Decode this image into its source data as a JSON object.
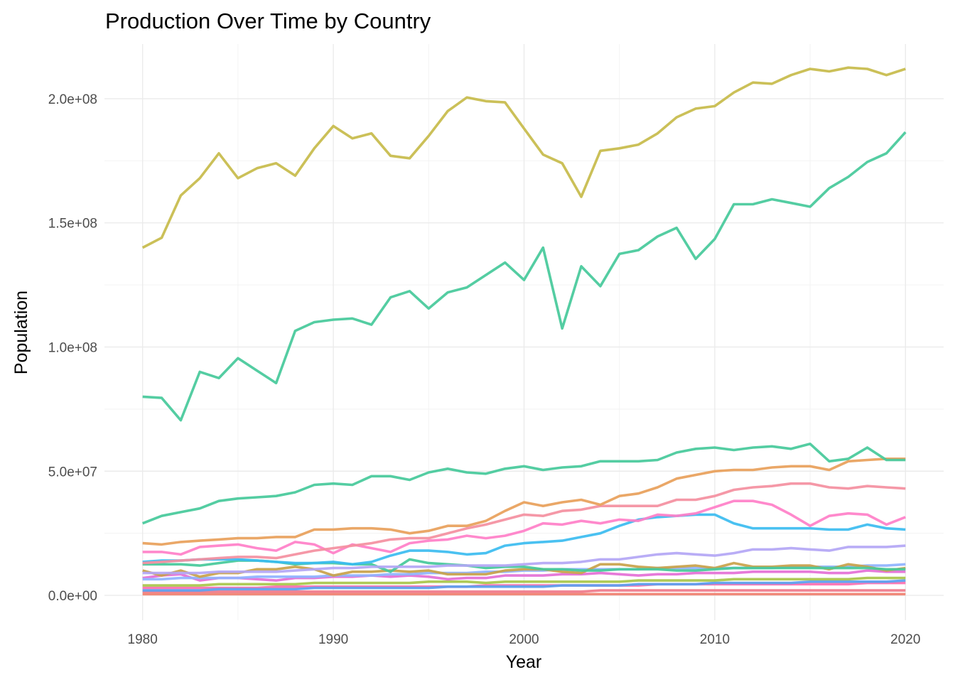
{
  "chart_data": {
    "type": "line",
    "title": "Production Over Time by Country",
    "xlabel": "Year",
    "ylabel": "Population",
    "xlim": [
      1978,
      2022
    ],
    "ylim": [
      -10000000,
      222000000
    ],
    "x_ticks": [
      1980,
      1990,
      2000,
      2010,
      2020
    ],
    "x_tick_labels": [
      "1980",
      "1990",
      "2000",
      "2010",
      "2020"
    ],
    "x_minor_ticks": [
      1985,
      1995,
      2005,
      2015
    ],
    "y_ticks": [
      0,
      50000000,
      100000000,
      150000000,
      200000000
    ],
    "y_tick_labels": [
      "0.0e+00",
      "5.0e+07",
      "1.0e+08",
      "1.5e+08",
      "2.0e+08"
    ],
    "y_minor_ticks": [
      25000000,
      75000000,
      125000000,
      175000000
    ],
    "grid": true,
    "legend": "none",
    "x": [
      1980,
      1981,
      1982,
      1983,
      1984,
      1985,
      1986,
      1987,
      1988,
      1989,
      1990,
      1991,
      1992,
      1993,
      1994,
      1995,
      1996,
      1997,
      1998,
      1999,
      2000,
      2001,
      2002,
      2003,
      2004,
      2005,
      2006,
      2007,
      2008,
      2009,
      2010,
      2011,
      2012,
      2013,
      2014,
      2015,
      2016,
      2017,
      2018,
      2019,
      2020
    ],
    "series": [
      {
        "color": "#c7bb4a",
        "values": [
          140000000,
          144000000,
          161000000,
          168000000,
          178000000,
          168000000,
          172000000,
          174000000,
          169000000,
          180000000,
          189000000,
          184000000,
          186000000,
          177000000,
          176000000,
          185000000,
          195000000,
          200500000,
          199000000,
          198500000,
          188000000,
          177500000,
          174000000,
          160500000,
          179000000,
          180000000,
          181500000,
          186000000,
          192500000,
          196000000,
          197000000,
          202500000,
          206500000,
          206000000,
          209500000,
          212000000,
          211000000,
          212500000,
          212000000,
          209500000,
          212000000
        ]
      },
      {
        "color": "#45c99a",
        "values": [
          80000000,
          79500000,
          70500000,
          90000000,
          87500000,
          95500000,
          90500000,
          85500000,
          106500000,
          110000000,
          111000000,
          111500000,
          109000000,
          120000000,
          122500000,
          115500000,
          122000000,
          124000000,
          129000000,
          134000000,
          127000000,
          140000000,
          107500000,
          132500000,
          124500000,
          137500000,
          139000000,
          144500000,
          148000000,
          135500000,
          143500000,
          157500000,
          157500000,
          159500000,
          158000000,
          156500000,
          164000000,
          168500000,
          174500000,
          178000000,
          186500000
        ]
      },
      {
        "color": "#45c99a",
        "values": [
          29000000,
          32000000,
          33500000,
          35000000,
          38000000,
          39000000,
          39500000,
          40000000,
          41500000,
          44500000,
          45000000,
          44500000,
          48000000,
          48000000,
          46500000,
          49500000,
          51000000,
          49500000,
          49000000,
          51000000,
          52000000,
          50500000,
          51500000,
          52000000,
          54000000,
          54000000,
          54000000,
          54500000,
          57500000,
          59000000,
          59500000,
          58500000,
          59500000,
          60000000,
          59000000,
          61000000,
          54000000,
          55000000,
          59500000,
          54500000,
          54500000
        ]
      },
      {
        "color": "#e8a05a",
        "values": [
          21000000,
          20500000,
          21500000,
          22000000,
          22500000,
          23000000,
          23000000,
          23500000,
          23500000,
          26500000,
          26500000,
          27000000,
          27000000,
          26500000,
          25000000,
          26000000,
          28000000,
          28000000,
          30000000,
          34000000,
          37500000,
          36000000,
          37500000,
          38500000,
          36500000,
          40000000,
          41000000,
          43500000,
          47000000,
          48500000,
          50000000,
          50500000,
          50500000,
          51500000,
          52000000,
          52000000,
          50500000,
          54000000,
          54500000,
          55000000,
          55000000
        ]
      },
      {
        "color": "#f48fa0",
        "values": [
          13000000,
          13500000,
          14000000,
          14500000,
          15000000,
          15500000,
          15500000,
          15000000,
          16500000,
          18000000,
          19000000,
          20000000,
          21000000,
          22500000,
          23000000,
          23000000,
          25000000,
          27000000,
          28500000,
          30500000,
          32500000,
          32000000,
          34000000,
          34500000,
          36000000,
          36000000,
          36000000,
          36000000,
          38500000,
          38500000,
          40000000,
          42500000,
          43500000,
          44000000,
          45000000,
          45000000,
          43500000,
          43000000,
          44000000,
          43500000,
          43000000
        ]
      },
      {
        "color": "#ff7fc8",
        "values": [
          17500000,
          17500000,
          16500000,
          19500000,
          20000000,
          20500000,
          19000000,
          18000000,
          21500000,
          20500000,
          17000000,
          20500000,
          19000000,
          17500000,
          21000000,
          22000000,
          22500000,
          24000000,
          23000000,
          24000000,
          26000000,
          29000000,
          28500000,
          30000000,
          29000000,
          30500000,
          30000000,
          32500000,
          32000000,
          33000000,
          35500000,
          38000000,
          38000000,
          36500000,
          32500000,
          28000000,
          32000000,
          33000000,
          32500000,
          28500000,
          31500000
        ]
      },
      {
        "color": "#3bbcf0",
        "values": [
          13500000,
          14000000,
          14000000,
          14500000,
          14500000,
          14500000,
          14000000,
          13500000,
          13000000,
          13000000,
          13500000,
          12500000,
          13500000,
          16000000,
          18000000,
          18000000,
          17500000,
          16500000,
          17000000,
          20000000,
          21000000,
          21500000,
          22000000,
          23500000,
          25000000,
          28000000,
          30500000,
          31500000,
          32000000,
          32500000,
          32500000,
          29000000,
          27000000,
          27000000,
          27000000,
          27000000,
          26500000,
          26500000,
          28500000,
          27000000,
          26500000
        ]
      },
      {
        "color": "#b3a6f5",
        "values": [
          9000000,
          9000000,
          9000000,
          9000000,
          9500000,
          9500000,
          9500000,
          9500000,
          10000000,
          10500000,
          11000000,
          11000000,
          11500000,
          11500000,
          11500000,
          11500000,
          12000000,
          12000000,
          12000000,
          12000000,
          12500000,
          13000000,
          13000000,
          13500000,
          14500000,
          14500000,
          15500000,
          16500000,
          17000000,
          16500000,
          16000000,
          17000000,
          18500000,
          18500000,
          19000000,
          18500000,
          18000000,
          19500000,
          19500000,
          19500000,
          20000000
        ]
      },
      {
        "color": "#45c99a",
        "values": [
          12500000,
          12500000,
          12500000,
          12000000,
          13000000,
          14000000,
          14000000,
          13500000,
          12500000,
          13000000,
          13000000,
          12500000,
          12500000,
          9500000,
          14500000,
          13000000,
          12500000,
          12000000,
          11000000,
          11500000,
          11500000,
          10500000,
          10500000,
          10000000,
          10000000,
          10500000,
          10500000,
          10500000,
          10000000,
          10000000,
          10500000,
          11000000,
          11000000,
          11000000,
          11000000,
          11000000,
          11000000,
          11000000,
          11000000,
          10500000,
          10500000
        ]
      },
      {
        "color": "#c9a24a",
        "values": [
          10000000,
          8000000,
          10000000,
          7500000,
          9000000,
          9000000,
          10500000,
          10500000,
          11500000,
          10500000,
          8000000,
          9500000,
          9500000,
          10000000,
          9500000,
          10000000,
          8500000,
          8500000,
          8500000,
          10000000,
          10500000,
          10500000,
          9500000,
          9000000,
          12500000,
          12500000,
          11500000,
          11000000,
          11500000,
          12000000,
          11000000,
          13000000,
          11500000,
          11500000,
          12000000,
          12000000,
          10500000,
          12500000,
          11500000,
          10000000,
          11000000
        ]
      },
      {
        "color": "#8fb3ff",
        "values": [
          6500000,
          6500000,
          7000000,
          7000000,
          7000000,
          7000000,
          7500000,
          7500000,
          7500000,
          7500000,
          8000000,
          8000000,
          8000000,
          8500000,
          8500000,
          9000000,
          9000000,
          9000000,
          9500000,
          9500000,
          10000000,
          10000000,
          10500000,
          10500000,
          10500000,
          10500000,
          10500000,
          11000000,
          11000000,
          11000000,
          11000000,
          11000000,
          11000000,
          11000000,
          11500000,
          11500000,
          11500000,
          11500000,
          12000000,
          12000000,
          12500000
        ]
      },
      {
        "color": "#e46fd6",
        "values": [
          7000000,
          8000000,
          8500000,
          6000000,
          7000000,
          7000000,
          6500000,
          6000000,
          7000000,
          7000000,
          7500000,
          7500000,
          8000000,
          7500000,
          8000000,
          7500000,
          6500000,
          7000000,
          7000000,
          8000000,
          8000000,
          8000000,
          8500000,
          8500000,
          9000000,
          8500000,
          8000000,
          8500000,
          8500000,
          9000000,
          9000000,
          9000000,
          9500000,
          9500000,
          9500000,
          9500000,
          9000000,
          9000000,
          10000000,
          9500000,
          9500000
        ]
      },
      {
        "color": "#a8c64a",
        "values": [
          4000000,
          4000000,
          4000000,
          4000000,
          4500000,
          4500000,
          4500000,
          4500000,
          4500000,
          5000000,
          5000000,
          5000000,
          5000000,
          5000000,
          5000000,
          5500000,
          5500000,
          5500000,
          5000000,
          5500000,
          5500000,
          5500000,
          5500000,
          5500000,
          5500000,
          5500000,
          6000000,
          6000000,
          6000000,
          6000000,
          6000000,
          6500000,
          6500000,
          6500000,
          6500000,
          6500000,
          6500000,
          6500000,
          7000000,
          7000000,
          7000000
        ]
      },
      {
        "color": "#5aa0f0",
        "values": [
          2000000,
          2000000,
          2000000,
          2000000,
          2500000,
          2500000,
          2500000,
          2500000,
          2500000,
          3000000,
          3000000,
          3000000,
          3000000,
          3000000,
          3000000,
          3000000,
          3500000,
          3500000,
          3500000,
          3500000,
          3500000,
          3500000,
          4000000,
          4000000,
          4000000,
          4000000,
          4500000,
          4500000,
          4500000,
          4500000,
          5000000,
          5000000,
          5000000,
          5000000,
          5000000,
          5500000,
          5500000,
          5500000,
          5500000,
          5500000,
          6000000
        ]
      },
      {
        "color": "#ff6fb0",
        "values": [
          3000000,
          3000000,
          3000000,
          3000000,
          3000000,
          3000000,
          3000000,
          3500000,
          3500000,
          3500000,
          3500000,
          3500000,
          3500000,
          3500000,
          3500000,
          3500000,
          3500000,
          3500000,
          4000000,
          4000000,
          4000000,
          4000000,
          4000000,
          4000000,
          4000000,
          4000000,
          4000000,
          4500000,
          4500000,
          4500000,
          4500000,
          4500000,
          4500000,
          4500000,
          4500000,
          4500000,
          4500000,
          4500000,
          5000000,
          5000000,
          5000000
        ]
      },
      {
        "color": "#f07a8a",
        "values": [
          1500000,
          1500000,
          1500000,
          1500000,
          1500000,
          1500000,
          1500000,
          1500000,
          1500000,
          1500000,
          1500000,
          1500000,
          1500000,
          1500000,
          1500000,
          1500000,
          1500000,
          1500000,
          1500000,
          1500000,
          1500000,
          1500000,
          1500000,
          1500000,
          2000000,
          2000000,
          2000000,
          2000000,
          2000000,
          2000000,
          2000000,
          2000000,
          2000000,
          2000000,
          2000000,
          2000000,
          2000000,
          2000000,
          2000000,
          2000000,
          2000000
        ]
      },
      {
        "color": "#f08070",
        "values": [
          500000,
          500000,
          500000,
          500000,
          500000,
          500000,
          500000,
          500000,
          500000,
          500000,
          500000,
          500000,
          500000,
          500000,
          500000,
          500000,
          500000,
          500000,
          500000,
          500000,
          500000,
          500000,
          500000,
          500000,
          500000,
          500000,
          500000,
          500000,
          500000,
          500000,
          500000,
          500000,
          500000,
          500000,
          500000,
          500000,
          500000,
          500000,
          500000,
          500000,
          500000
        ]
      }
    ]
  }
}
